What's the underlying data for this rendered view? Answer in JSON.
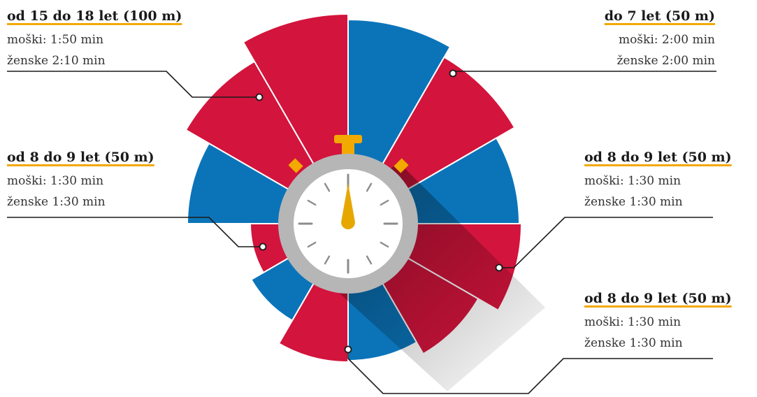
{
  "colors": {
    "blue": "#0b74b9",
    "red": "#d3143c",
    "accent": "#f2a900",
    "ring": "#b6b6b6",
    "hand": "#e6a800",
    "line": "#1a1a1a"
  },
  "callouts": {
    "top_left": {
      "title": "od 15 do 18 let (100 m)",
      "line1": "moški: 1:50 min",
      "line2": "ženske 2:10 min"
    },
    "top_right": {
      "title": "do 7 let (50 m)",
      "line1": "moški: 2:00 min",
      "line2": "ženske 2:00 min"
    },
    "mid_left": {
      "title": "od 8 do 9 let (50 m)",
      "line1": "moški: 1:30 min",
      "line2": "ženske 1:30 min"
    },
    "mid_right": {
      "title": "od 8 do 9 let (50 m)",
      "line1": "moški: 1:30 min",
      "line2": "ženske 1:30 min"
    },
    "low_right": {
      "title": "od 8 do 9 let (50 m)",
      "line1": "moški: 1:30 min",
      "line2": "ženske 1:30 min"
    }
  },
  "icons": {
    "center": "stopwatch-icon"
  }
}
